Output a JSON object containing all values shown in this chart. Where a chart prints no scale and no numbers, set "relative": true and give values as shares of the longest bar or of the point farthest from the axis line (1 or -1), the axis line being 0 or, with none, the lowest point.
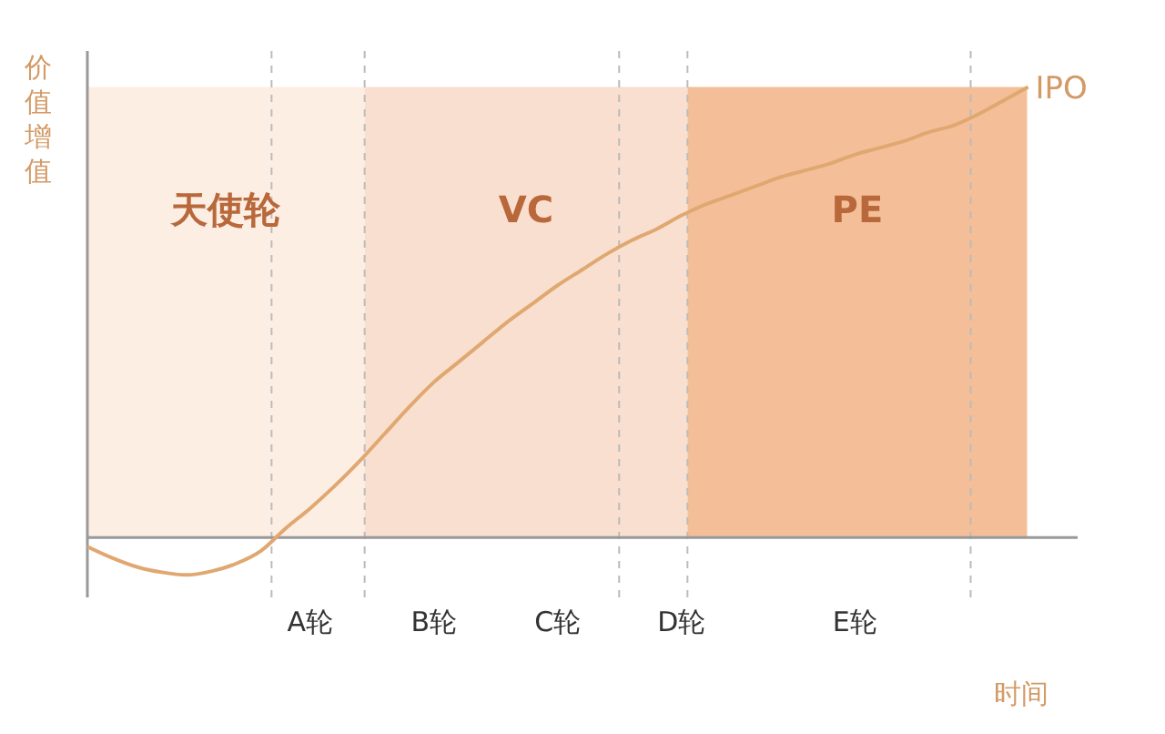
{
  "chart_data": {
    "type": "line",
    "relative": true,
    "ylabel": "价值增值",
    "xlabel": "时间",
    "categories": [
      null,
      null,
      null,
      null,
      null,
      null,
      null,
      null,
      null,
      "A轮",
      null,
      null,
      null,
      null,
      "B轮",
      null,
      null,
      null,
      null,
      "C轮",
      null,
      null,
      null,
      null,
      "D轮",
      null,
      null,
      null,
      null,
      null,
      null,
      "E轮",
      null,
      null,
      null,
      null,
      null,
      null,
      null,
      null,
      null
    ],
    "series": [
      {
        "color": "#e0a870",
        "values": [
          -0.02,
          -0.045,
          -0.065,
          -0.077,
          -0.083,
          -0.075,
          -0.058,
          -0.03,
          0.02,
          0.065,
          0.115,
          0.17,
          0.23,
          0.29,
          0.345,
          0.39,
          0.435,
          0.48,
          0.52,
          0.56,
          0.595,
          0.63,
          0.66,
          0.685,
          0.715,
          0.74,
          0.76,
          0.78,
          0.8,
          0.815,
          0.83,
          0.85,
          0.865,
          0.88,
          0.9,
          0.915,
          0.94,
          0.97,
          1.0,
          null,
          null
        ]
      }
    ],
    "annotations": [
      "天使轮",
      "VC",
      "PE",
      "IPO"
    ],
    "grid": false,
    "legend": false,
    "marker": "none",
    "line_style": "solid"
  }
}
